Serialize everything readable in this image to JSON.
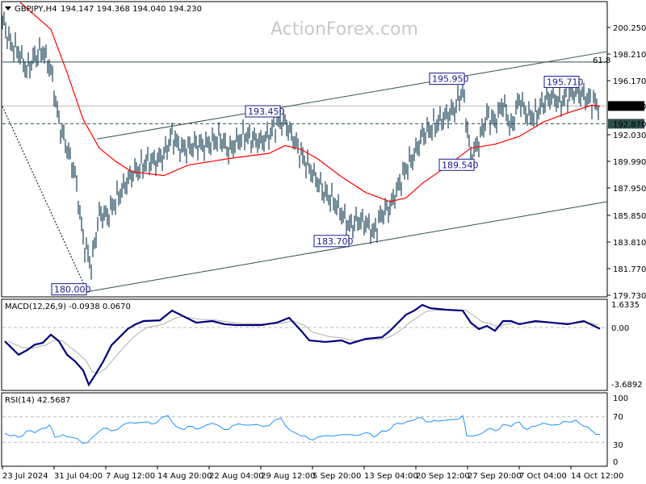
{
  "header": {
    "symbol": "GBPJPY,H4",
    "ohlc": "194.147 194.368 194.040 194.230"
  },
  "watermark": "ActionForex.com",
  "macd": {
    "label": "MACD(12,26,9) -0.0938 0.0670",
    "ticks": [
      "1.6335",
      "0.00",
      "-3.6892"
    ]
  },
  "rsi": {
    "label": "RSI(14) 42.5687",
    "ticks": [
      "100",
      "70",
      "30",
      "0"
    ]
  },
  "fib_label": "61.8",
  "colors": {
    "bars": "#1b4257",
    "ma": "#ff0000",
    "macd": "#00007f",
    "signal": "#b0b0b0",
    "rsi": "#1e90ff",
    "label": "#1a1a8c"
  },
  "chart_data": {
    "type": "line",
    "title": "GBPJPY,H4",
    "x_unit": "bar (approx. 10 px / ~2.5 H4 bars)",
    "xticks": [
      "23 Jul 2024",
      "31 Jul 04:00",
      "7 Aug 12:00",
      "14 Aug 20:00",
      "22 Aug 04:00",
      "29 Aug 12:00",
      "5 Sep 20:00",
      "13 Sep 04:00",
      "20 Sep 12:00",
      "27 Sep 20:00",
      "7 Oct 04:00",
      "14 Oct 12:00"
    ],
    "yticks": [
      "200.250",
      "198.210",
      "196.170",
      "192.030",
      "189.990",
      "187.950",
      "185.850",
      "183.810",
      "181.770",
      "179.730"
    ],
    "ylim": [
      179.73,
      200.25
    ],
    "current_price": "194.230",
    "level_price": "192.870",
    "fib_level": 197.6,
    "close": [
      200.8,
      199,
      198.4,
      197,
      198,
      198.5,
      197,
      193,
      191,
      189,
      184,
      182,
      186,
      185.8,
      187,
      188,
      189,
      189.5,
      190,
      190,
      190.5,
      192,
      191,
      191,
      191.3,
      191.2,
      191.5,
      191.8,
      190.8,
      191.5,
      192,
      191.7,
      191.5,
      192,
      193,
      193,
      191.8,
      190.5,
      189.5,
      188.5,
      187.5,
      187,
      186,
      185,
      185.5,
      185.3,
      184.5,
      186,
      186.5,
      188,
      189.5,
      190.5,
      192,
      192.5,
      193,
      193.5,
      194,
      195.5,
      190.3,
      191.5,
      193.5,
      193,
      194.5,
      192.5,
      194.8,
      193.5,
      193.5,
      194.5,
      195,
      194.5,
      195,
      195.4,
      195,
      194.6,
      194.23
    ],
    "ma": [
      [
        2.2,
        202.2
      ],
      [
        6,
        200.1
      ],
      [
        8,
        196.8
      ],
      [
        10,
        193.2
      ],
      [
        12,
        191
      ],
      [
        14,
        190
      ],
      [
        16,
        189.2
      ],
      [
        20,
        188.9
      ],
      [
        23,
        189.7
      ],
      [
        28,
        190.2
      ],
      [
        33,
        190.6
      ],
      [
        35,
        191.2
      ],
      [
        37,
        190.9
      ],
      [
        39,
        190.2
      ],
      [
        42,
        188.8
      ],
      [
        45,
        187.6
      ],
      [
        48,
        186.9
      ],
      [
        50,
        187.2
      ],
      [
        52,
        188.3
      ],
      [
        55,
        189.6
      ],
      [
        58,
        191
      ],
      [
        61,
        191.3
      ],
      [
        64,
        191.9
      ],
      [
        67,
        193
      ],
      [
        70,
        193.7
      ],
      [
        73,
        194.3
      ],
      [
        74,
        194.2
      ]
    ],
    "swing_labels": [
      {
        "text": "180.000",
        "bar": 10.5,
        "price": 180.0,
        "side": "left",
        "pos": "below"
      },
      {
        "text": "193.450",
        "bar": 34.5,
        "price": 193.45,
        "side": "left",
        "pos": "above"
      },
      {
        "text": "183.700",
        "bar": 43,
        "price": 183.7,
        "side": "left",
        "pos": "below"
      },
      {
        "text": "195.950",
        "bar": 57.3,
        "price": 195.95,
        "side": "left",
        "pos": "above"
      },
      {
        "text": "189.540",
        "bar": 58.5,
        "price": 189.54,
        "side": "left",
        "pos": "below"
      },
      {
        "text": "195.710",
        "bar": 71.5,
        "price": 195.71,
        "side": "left",
        "pos": "above"
      }
    ],
    "channel_upper": [
      [
        11.7,
        191.7
      ],
      [
        75,
        198.4
      ]
    ],
    "channel_lower": [
      [
        10.5,
        180.0
      ],
      [
        75,
        186.9
      ]
    ],
    "macd_ylim": [
      -3.6892,
      1.6335
    ],
    "macd": [
      [
        0.3,
        -0.96
      ],
      [
        2,
        -1.9
      ],
      [
        3,
        -1.6
      ],
      [
        4,
        -1.2
      ],
      [
        5,
        -1.07
      ],
      [
        6,
        -0.5
      ],
      [
        7,
        -0.96
      ],
      [
        8,
        -1.9
      ],
      [
        9,
        -2.36
      ],
      [
        10,
        -3.0
      ],
      [
        10.7,
        -4.0
      ],
      [
        11.5,
        -3.3
      ],
      [
        12.5,
        -2.36
      ],
      [
        13.5,
        -1.24
      ],
      [
        14.5,
        -0.68
      ],
      [
        15.5,
        -0.11
      ],
      [
        16.5,
        0.23
      ],
      [
        17.5,
        0.45
      ],
      [
        19.5,
        0.5
      ],
      [
        21,
        1.18
      ],
      [
        22,
        0.9
      ],
      [
        24,
        0.34
      ],
      [
        26,
        0.45
      ],
      [
        27.5,
        0.23
      ],
      [
        29,
        0.17
      ],
      [
        32,
        0.17
      ],
      [
        34,
        0.34
      ],
      [
        35.5,
        0.68
      ],
      [
        37,
        -0.23
      ],
      [
        38,
        -0.9
      ],
      [
        40,
        -1.01
      ],
      [
        42,
        -0.9
      ],
      [
        43,
        -1.13
      ],
      [
        45,
        -0.79
      ],
      [
        47,
        -0.68
      ],
      [
        48,
        -0.23
      ],
      [
        49,
        0.34
      ],
      [
        50,
        0.9
      ],
      [
        51,
        1.18
      ],
      [
        52,
        1.58
      ],
      [
        53,
        1.35
      ],
      [
        55,
        1.24
      ],
      [
        57,
        1.18
      ],
      [
        58,
        0.34
      ],
      [
        59,
        -0.11
      ],
      [
        60,
        0.11
      ],
      [
        61,
        -0.23
      ],
      [
        62,
        0.45
      ],
      [
        63,
        0.45
      ],
      [
        64,
        0.23
      ],
      [
        66,
        0.45
      ],
      [
        68,
        0.34
      ],
      [
        70,
        0.23
      ],
      [
        72,
        0.45
      ],
      [
        74,
        -0.09
      ]
    ],
    "rsi_ylim": [
      0,
      100
    ],
    "rsi_levels": [
      70,
      30
    ],
    "rsi": [
      [
        0.3,
        44
      ],
      [
        1,
        40
      ],
      [
        2,
        38
      ],
      [
        3,
        48
      ],
      [
        4,
        45
      ],
      [
        5,
        52
      ],
      [
        5.8,
        57
      ],
      [
        6.5,
        38
      ],
      [
        7.5,
        42
      ],
      [
        8.5,
        38
      ],
      [
        10,
        28
      ],
      [
        11,
        36
      ],
      [
        12.5,
        52
      ],
      [
        13.5,
        48
      ],
      [
        15,
        58
      ],
      [
        16.5,
        60
      ],
      [
        18,
        62
      ],
      [
        19,
        60
      ],
      [
        20.5,
        72
      ],
      [
        21.5,
        55
      ],
      [
        22.5,
        50
      ],
      [
        23.5,
        55
      ],
      [
        24.5,
        52
      ],
      [
        26,
        60
      ],
      [
        27.5,
        50
      ],
      [
        28.5,
        56
      ],
      [
        30,
        57
      ],
      [
        31.5,
        58
      ],
      [
        33,
        56
      ],
      [
        34.5,
        68
      ],
      [
        35.5,
        50
      ],
      [
        37,
        40
      ],
      [
        38,
        35
      ],
      [
        39,
        38
      ],
      [
        41,
        40
      ],
      [
        43,
        42
      ],
      [
        45,
        45
      ],
      [
        46,
        38
      ],
      [
        47,
        48
      ],
      [
        48,
        50
      ],
      [
        49,
        60
      ],
      [
        50,
        62
      ],
      [
        51,
        65
      ],
      [
        52,
        68
      ],
      [
        53,
        62
      ],
      [
        54,
        63
      ],
      [
        56,
        66
      ],
      [
        57,
        72
      ],
      [
        57.5,
        40
      ],
      [
        59,
        42
      ],
      [
        60,
        50
      ],
      [
        61,
        48
      ],
      [
        62,
        58
      ],
      [
        63,
        55
      ],
      [
        64,
        62
      ],
      [
        65,
        50
      ],
      [
        66,
        55
      ],
      [
        67,
        60
      ],
      [
        69,
        58
      ],
      [
        70,
        62
      ],
      [
        71,
        65
      ],
      [
        72,
        55
      ],
      [
        73,
        48
      ],
      [
        74,
        42.57
      ]
    ]
  }
}
